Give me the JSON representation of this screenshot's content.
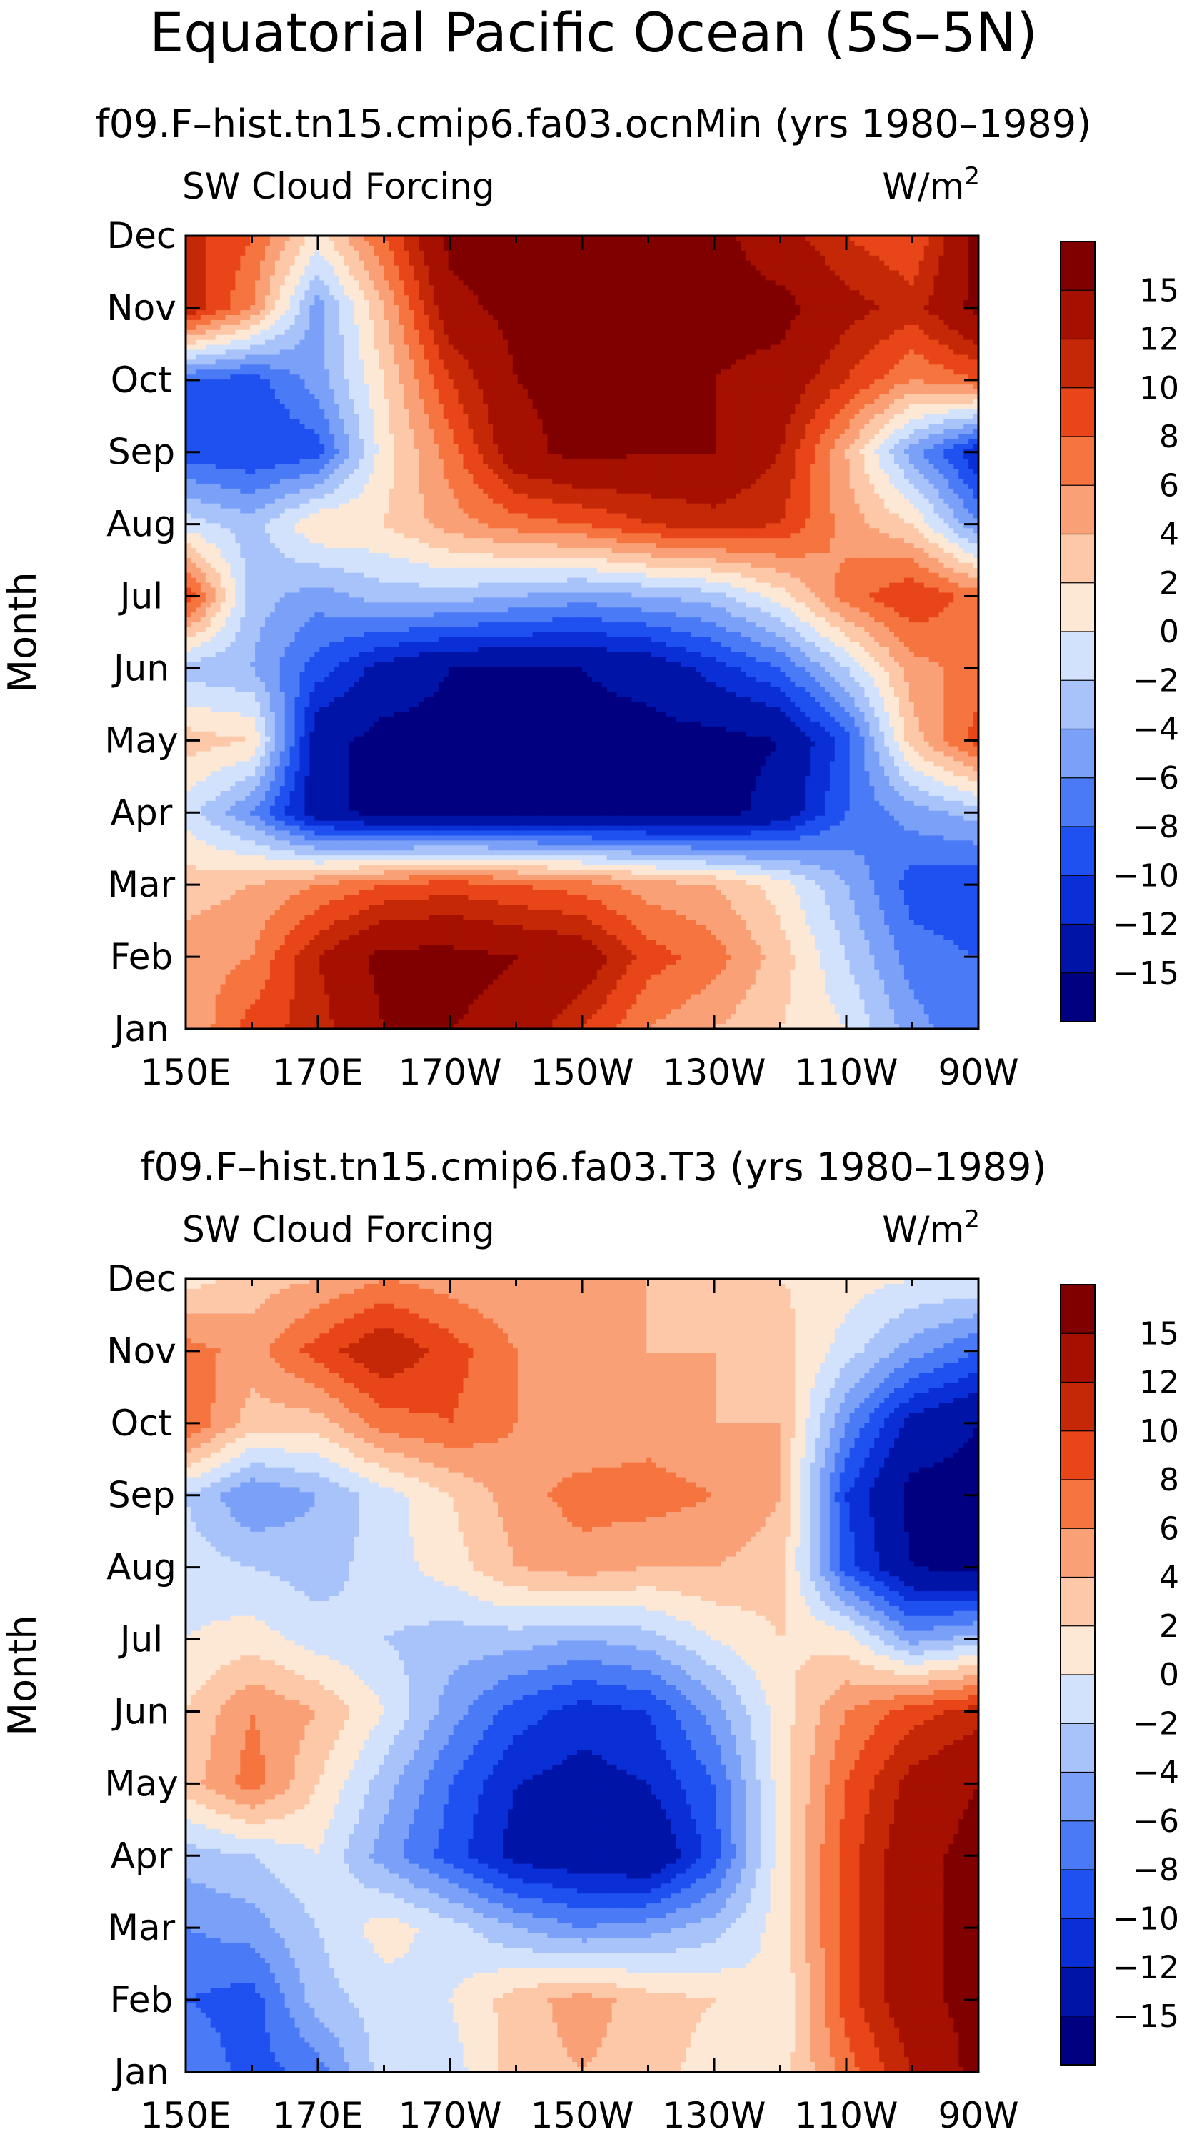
{
  "figure": {
    "title": "Equatorial Pacific Ocean (5S–5N)"
  },
  "chart_data": [
    {
      "type": "heatmap",
      "subtitle": "f09.F–hist.tn15.cmip6.fa03.ocnMin (yrs 1980–1989)",
      "left_label": "SW Cloud Forcing",
      "units_base": "W/m",
      "units_sup": "2",
      "ylabel": "Month",
      "x_tick_labels": [
        "150E",
        "170E",
        "170W",
        "150W",
        "130W",
        "110W",
        "90W"
      ],
      "x_range_deg_east": [
        150,
        270
      ],
      "y_tick_labels": [
        "Jan",
        "Feb",
        "Mar",
        "Apr",
        "May",
        "Jun",
        "Jul",
        "Aug",
        "Sep",
        "Oct",
        "Nov",
        "Dec"
      ],
      "colorbar_labels": [
        "15",
        "12",
        "10",
        "8",
        "6",
        "4",
        "2",
        "0",
        "−2",
        "−4",
        "−6",
        "−8",
        "−10",
        "−12",
        "−15"
      ],
      "grid_lon_deg_east": [
        150,
        160,
        170,
        180,
        190,
        200,
        210,
        220,
        230,
        240,
        250,
        260,
        270
      ],
      "values_by_month": [
        [
          4,
          9,
          11,
          15,
          15,
          14,
          10,
          6,
          4,
          2,
          0,
          -5,
          -8
        ],
        [
          5,
          6,
          12,
          16,
          16,
          15,
          14,
          9,
          7,
          3,
          -2,
          -7,
          -8
        ],
        [
          3,
          4,
          6,
          8,
          9,
          8,
          7,
          5,
          4,
          1,
          -4,
          -9,
          -10
        ],
        [
          -1,
          -6,
          -14,
          -16,
          -16,
          -16,
          -16,
          -16,
          -16,
          -14,
          -8,
          -5,
          -3
        ],
        [
          3,
          2,
          -14,
          -16,
          -16,
          -16,
          -16,
          -16,
          -16,
          -15,
          -9,
          3,
          9
        ],
        [
          -3,
          -4,
          -9,
          -13,
          -15,
          -15,
          -15,
          -14,
          -11,
          -8,
          -2,
          5,
          7
        ],
        [
          10,
          -3,
          -5,
          -3,
          -3,
          -4,
          -5,
          -4,
          -3,
          1,
          7,
          10,
          7
        ],
        [
          -1,
          -3,
          2,
          2,
          5,
          7,
          8,
          10,
          11,
          10,
          5,
          2,
          -6
        ],
        [
          -9,
          -10,
          -9,
          1,
          7,
          14,
          16,
          15,
          15,
          12,
          4,
          -5,
          -12
        ],
        [
          -8,
          -9,
          -5,
          2,
          10,
          15,
          16,
          16,
          15,
          14,
          10,
          6,
          8
        ],
        [
          12,
          6,
          -5,
          4,
          14,
          16,
          16,
          16,
          16,
          16,
          13,
          11,
          16
        ],
        [
          11,
          8,
          1,
          8,
          16,
          16,
          16,
          16,
          16,
          13,
          10,
          8,
          16
        ]
      ]
    },
    {
      "type": "heatmap",
      "subtitle": "f09.F–hist.tn15.cmip6.fa03.T3 (yrs 1980–1989)",
      "left_label": "SW Cloud Forcing",
      "units_base": "W/m",
      "units_sup": "2",
      "ylabel": "Month",
      "x_tick_labels": [
        "150E",
        "170E",
        "170W",
        "150W",
        "130W",
        "110W",
        "90W"
      ],
      "x_range_deg_east": [
        150,
        270
      ],
      "y_tick_labels": [
        "Jan",
        "Feb",
        "Mar",
        "Apr",
        "May",
        "Jun",
        "Jul",
        "Aug",
        "Sep",
        "Oct",
        "Nov",
        "Dec"
      ],
      "colorbar_labels": [
        "15",
        "12",
        "10",
        "8",
        "6",
        "4",
        "2",
        "0",
        "−2",
        "−4",
        "−6",
        "−8",
        "−10",
        "−12",
        "−15"
      ],
      "grid_lon_deg_east": [
        150,
        160,
        170,
        180,
        190,
        200,
        210,
        220,
        230,
        240,
        250,
        260,
        270
      ],
      "values_by_month": [
        [
          -6,
          -9,
          -7,
          -1,
          -1,
          3,
          4,
          3,
          1,
          1,
          7,
          12,
          16
        ],
        [
          -8,
          -9,
          -3,
          -1,
          0,
          3,
          5,
          3,
          2,
          0,
          9,
          14,
          16
        ],
        [
          -6,
          -5,
          -2,
          1,
          -1,
          -4,
          -6,
          -5,
          -3,
          1,
          9,
          14,
          16
        ],
        [
          -3,
          -2,
          0,
          -5,
          -9,
          -13,
          -14,
          -15,
          -9,
          1,
          9,
          14,
          16
        ],
        [
          3,
          7,
          2,
          -3,
          -8,
          -12,
          -13,
          -12,
          -8,
          1,
          8,
          13,
          15
        ],
        [
          2,
          6,
          4,
          0,
          -5,
          -9,
          -11,
          -10,
          -5,
          1,
          6,
          9,
          11
        ],
        [
          0,
          1,
          -1,
          -2,
          -3,
          -3,
          -4,
          -3,
          0,
          2,
          1,
          -5,
          -3
        ],
        [
          -1,
          -2,
          -3,
          -1,
          1,
          4,
          5,
          4,
          4,
          3,
          -9,
          -15,
          -16
        ],
        [
          -2,
          -6,
          -4,
          -1,
          2,
          5,
          7,
          7,
          6,
          4,
          -10,
          -16,
          -16
        ],
        [
          8,
          3,
          3,
          7,
          8,
          6,
          4,
          5,
          4,
          4,
          -6,
          -13,
          -15
        ],
        [
          7,
          5,
          9,
          12,
          9,
          6,
          5,
          4,
          4,
          3,
          -1,
          -5,
          -8
        ],
        [
          1,
          3,
          4,
          6,
          5,
          4,
          4,
          4,
          3,
          2,
          1,
          0,
          0
        ]
      ]
    }
  ]
}
